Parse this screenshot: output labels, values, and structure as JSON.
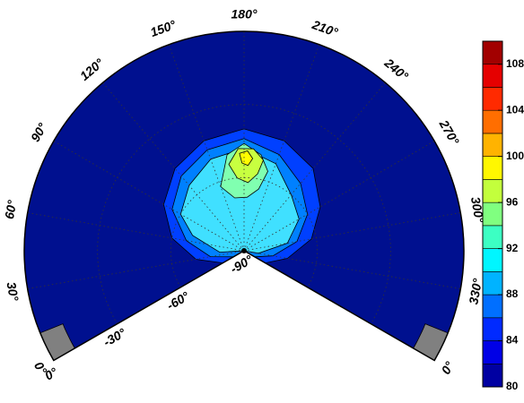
{
  "chart_data": {
    "type": "heatmap",
    "projection": "polar-sector",
    "colormap": "jet",
    "colorbar": {
      "min": 80,
      "max": 110,
      "ticks": [
        "80",
        "84",
        "88",
        "92",
        "96",
        "100",
        "104",
        "108"
      ],
      "tick_values": [
        80,
        84,
        88,
        92,
        96,
        100,
        104,
        108
      ],
      "levels": [
        80,
        82,
        84,
        86,
        88,
        90,
        92,
        94,
        96,
        98,
        100,
        102,
        104,
        106,
        108,
        110
      ]
    },
    "azimuth_labels": [
      {
        "label": "0°",
        "deg": 0
      },
      {
        "label": "30°",
        "deg": 30
      },
      {
        "label": "60°",
        "deg": 60
      },
      {
        "label": "90°",
        "deg": 90
      },
      {
        "label": "120°",
        "deg": 120
      },
      {
        "label": "150°",
        "deg": 150
      },
      {
        "label": "180°",
        "deg": 180
      },
      {
        "label": "210°",
        "deg": 210
      },
      {
        "label": "240°",
        "deg": 240
      },
      {
        "label": "270°",
        "deg": 270
      },
      {
        "label": "300°",
        "deg": 300
      },
      {
        "label": "330°",
        "deg": 330
      },
      {
        "label": "0°",
        "deg": 360
      }
    ],
    "elevation_labels": [
      {
        "label": "-90°",
        "value": -90
      },
      {
        "label": "-60°",
        "value": -60
      },
      {
        "label": "-30°",
        "value": -30
      },
      {
        "label": "0°",
        "value": 0
      }
    ],
    "grid": true,
    "contour_regions": [
      {
        "level": 84,
        "color": "#0040ff",
        "points": [
          [
            0,
            -80
          ],
          [
            30,
            -70
          ],
          [
            60,
            -60
          ],
          [
            90,
            -52
          ],
          [
            120,
            -46
          ],
          [
            150,
            -42
          ],
          [
            180,
            -40
          ],
          [
            210,
            -42
          ],
          [
            240,
            -46
          ],
          [
            270,
            -54
          ],
          [
            300,
            -62
          ],
          [
            330,
            -72
          ],
          [
            360,
            -80
          ]
        ]
      },
      {
        "level": 88,
        "color": "#0080ff",
        "points": [
          [
            0,
            -85
          ],
          [
            30,
            -76
          ],
          [
            60,
            -66
          ],
          [
            90,
            -56
          ],
          [
            120,
            -50
          ],
          [
            150,
            -46
          ],
          [
            180,
            -44
          ],
          [
            210,
            -48
          ],
          [
            240,
            -54
          ],
          [
            270,
            -60
          ],
          [
            300,
            -68
          ],
          [
            330,
            -78
          ],
          [
            360,
            -85
          ]
        ]
      },
      {
        "level": 92,
        "color": "#40e0ff",
        "points": [
          [
            10,
            -90
          ],
          [
            40,
            -80
          ],
          [
            70,
            -68
          ],
          [
            90,
            -60
          ],
          [
            120,
            -55
          ],
          [
            150,
            -50
          ],
          [
            180,
            -48
          ],
          [
            210,
            -52
          ],
          [
            240,
            -60
          ],
          [
            270,
            -64
          ],
          [
            300,
            -72
          ],
          [
            330,
            -84
          ],
          [
            350,
            -90
          ]
        ]
      },
      {
        "level": 96,
        "color": "#80ffb0",
        "points": [
          [
            150,
            -62
          ],
          [
            165,
            -50
          ],
          [
            180,
            -46
          ],
          [
            195,
            -50
          ],
          [
            205,
            -56
          ],
          [
            200,
            -64
          ],
          [
            185,
            -68
          ],
          [
            165,
            -68
          ]
        ]
      },
      {
        "level": 98,
        "color": "#c8ff40",
        "points": [
          [
            165,
            -54
          ],
          [
            175,
            -48
          ],
          [
            188,
            -48
          ],
          [
            198,
            -52
          ],
          [
            195,
            -58
          ],
          [
            185,
            -62
          ],
          [
            172,
            -60
          ]
        ]
      },
      {
        "level": 100,
        "color": "#ffff00",
        "points": [
          [
            176,
            -50
          ],
          [
            183,
            -49
          ],
          [
            188,
            -52
          ],
          [
            184,
            -55
          ],
          [
            178,
            -54
          ]
        ]
      }
    ],
    "missing_color": "#808080"
  }
}
